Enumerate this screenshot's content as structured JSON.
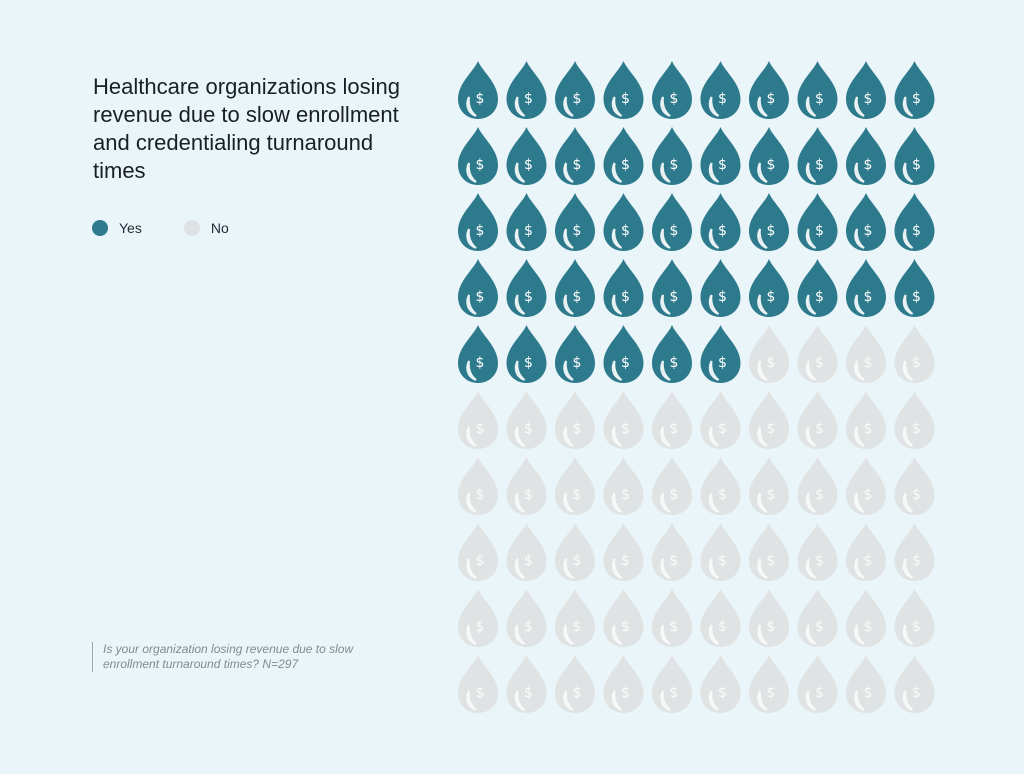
{
  "title": "Healthcare organizations losing revenue due to slow enrollment and credentialing turnaround times",
  "legend": {
    "yes_label": "Yes",
    "no_label": "No"
  },
  "footnote": "Is your organization losing revenue due to slow enrollment turnaround times? N=297",
  "colors": {
    "yes": "#2e7a8d",
    "no": "#dfe3e4",
    "background": "#e9f5f9"
  },
  "icon": "dollar-droplet-icon",
  "chart_data": {
    "type": "waffle",
    "rows": 10,
    "columns": 10,
    "total": 100,
    "categories": [
      "Yes",
      "No"
    ],
    "values": [
      46,
      54
    ]
  }
}
